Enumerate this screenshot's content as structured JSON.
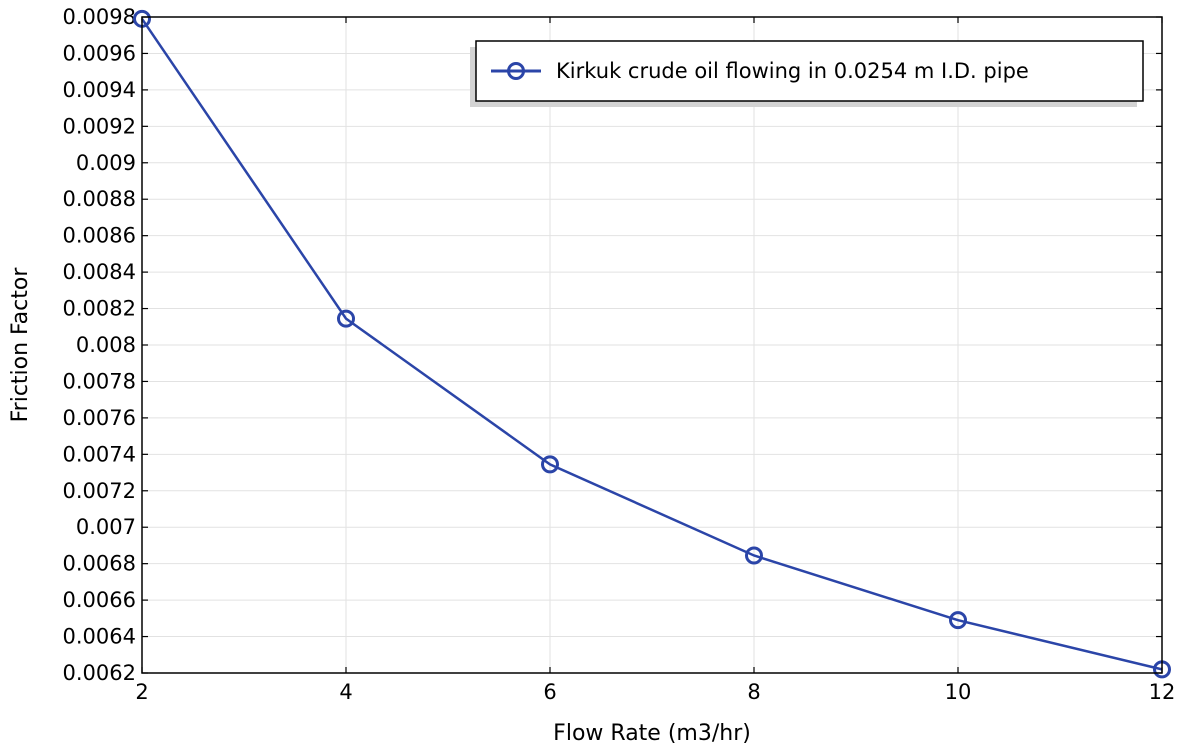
{
  "chart_data": {
    "type": "line",
    "title": "",
    "xlabel": "Flow Rate (m3/hr)",
    "ylabel": "Friction Factor",
    "xlim": [
      2,
      12
    ],
    "ylim": [
      0.0062,
      0.0098
    ],
    "grid": true,
    "legend_position": "top-right",
    "x_ticks": [
      {
        "value": 2,
        "label": "2"
      },
      {
        "value": 4,
        "label": "4"
      },
      {
        "value": 6,
        "label": "6"
      },
      {
        "value": 8,
        "label": "8"
      },
      {
        "value": 10,
        "label": "10"
      },
      {
        "value": 12,
        "label": "12"
      }
    ],
    "y_ticks": [
      {
        "value": 0.0062,
        "label": "0.0062"
      },
      {
        "value": 0.0064,
        "label": "0.0064"
      },
      {
        "value": 0.0066,
        "label": "0.0066"
      },
      {
        "value": 0.0068,
        "label": "0.0068"
      },
      {
        "value": 0.007,
        "label": "0.007"
      },
      {
        "value": 0.0072,
        "label": "0.0072"
      },
      {
        "value": 0.0074,
        "label": "0.0074"
      },
      {
        "value": 0.0076,
        "label": "0.0076"
      },
      {
        "value": 0.0078,
        "label": "0.0078"
      },
      {
        "value": 0.008,
        "label": "0.008"
      },
      {
        "value": 0.0082,
        "label": "0.0082"
      },
      {
        "value": 0.0084,
        "label": "0.0084"
      },
      {
        "value": 0.0086,
        "label": "0.0086"
      },
      {
        "value": 0.0088,
        "label": "0.0088"
      },
      {
        "value": 0.009,
        "label": "0.009"
      },
      {
        "value": 0.0092,
        "label": "0.0092"
      },
      {
        "value": 0.0094,
        "label": "0.0094"
      },
      {
        "value": 0.0096,
        "label": "0.0096"
      },
      {
        "value": 0.0098,
        "label": "0.0098"
      }
    ],
    "series": [
      {
        "name": "Kirkuk crude oil flowing in 0.0254 m I.D. pipe",
        "color": "#2b45a8",
        "marker": "circle",
        "x": [
          2,
          4,
          6,
          8,
          10,
          12
        ],
        "y": [
          0.00979,
          0.008145,
          0.007345,
          0.006845,
          0.00649,
          0.00622
        ]
      }
    ]
  }
}
